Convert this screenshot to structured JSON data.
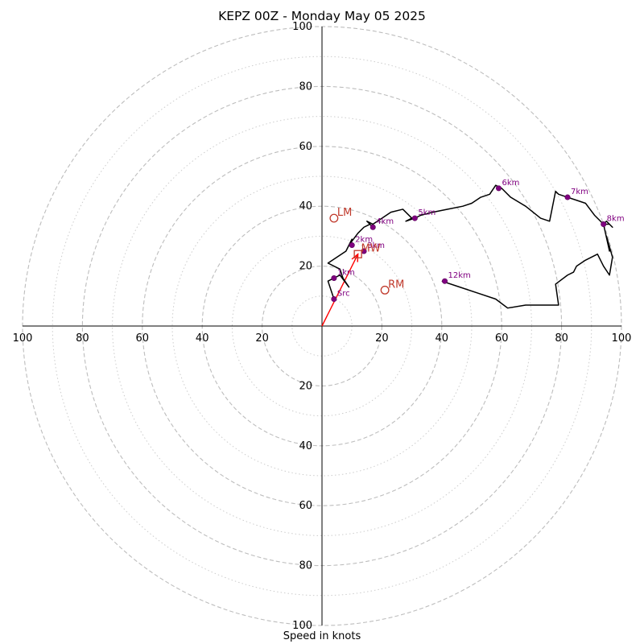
{
  "chart_data": {
    "type": "scatter",
    "title": "KEPZ 00Z - Monday May 05 2025",
    "xlabel": "Speed in knots",
    "ylabel": "",
    "range_max": 100,
    "ring_major": [
      20,
      40,
      60,
      80,
      100
    ],
    "ring_minor": [
      10,
      30,
      50,
      70,
      90
    ],
    "axis_ticks": [
      "20",
      "40",
      "60",
      "80",
      "100"
    ],
    "grid": true,
    "hodograph_line_color": "#000000",
    "height_marker_color": "#800080",
    "storm_motion_color": "#c0392b",
    "mean_wind_vector_color": "#ff0000",
    "hodograph": {
      "u": [
        4,
        3,
        2,
        4,
        6,
        9,
        7,
        6,
        2,
        8,
        10,
        9,
        12,
        14,
        16,
        17,
        16,
        15,
        17,
        20,
        23,
        27,
        30,
        28,
        31,
        33,
        37,
        42,
        47,
        50,
        53,
        56,
        58,
        60,
        63,
        68,
        73,
        76,
        77,
        78,
        79,
        82,
        85,
        88,
        91,
        94,
        96,
        97,
        95,
        94,
        96,
        95,
        97,
        96,
        94,
        92,
        88,
        85,
        84,
        82,
        78,
        79,
        68,
        62,
        58,
        52,
        46,
        40
      ],
      "v": [
        9,
        12,
        15,
        16,
        17,
        13,
        16,
        19,
        21,
        25,
        29,
        27,
        31,
        33,
        34,
        33,
        34,
        35,
        34,
        36,
        38,
        39,
        36,
        35,
        36,
        37,
        38,
        39,
        40,
        41,
        43,
        44,
        47,
        46,
        43,
        40,
        36,
        35,
        40,
        45,
        44,
        43,
        42,
        41,
        37,
        34,
        34,
        33,
        35,
        34,
        25,
        30,
        23,
        17,
        20,
        24,
        22,
        20,
        18,
        17,
        14,
        7,
        7,
        6,
        9,
        11,
        13,
        15
      ]
    },
    "heights": [
      {
        "label": "Src",
        "u": 4,
        "v": 9
      },
      {
        "label": "1km",
        "u": 4,
        "v": 16
      },
      {
        "label": "2km",
        "u": 10,
        "v": 27
      },
      {
        "label": "3km",
        "u": 14,
        "v": 25
      },
      {
        "label": "4km",
        "u": 17,
        "v": 33
      },
      {
        "label": "5km",
        "u": 31,
        "v": 36
      },
      {
        "label": "6km",
        "u": 59,
        "v": 46
      },
      {
        "label": "7km",
        "u": 82,
        "v": 43
      },
      {
        "label": "8km",
        "u": 94,
        "v": 34
      },
      {
        "label": "12km",
        "u": 41,
        "v": 15
      }
    ],
    "storm_motion": [
      {
        "label": "LM",
        "u": 4,
        "v": 36,
        "marker": "circle"
      },
      {
        "label": "RM",
        "u": 21,
        "v": 12,
        "marker": "circle"
      },
      {
        "label": "MW",
        "u": 12,
        "v": 24,
        "marker": "square"
      }
    ],
    "mean_wind_vector": {
      "u": 12,
      "v": 24
    }
  }
}
